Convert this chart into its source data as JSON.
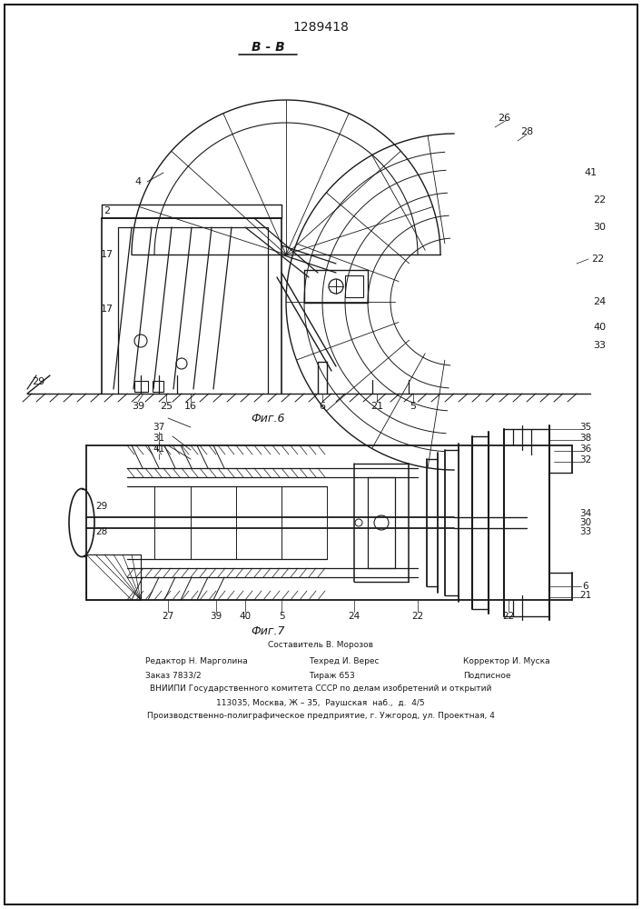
{
  "title": "1289418",
  "bg_color": "#ffffff",
  "fig_width": 7.07,
  "fig_height": 10.0,
  "section_label": "B - B",
  "fig6_label": "Фиг.6",
  "fig7_label": "Фиг.7",
  "footer_lines": [
    "Составитель В. Морозов",
    "Редактор Н. Марголина",
    "Техред И. Верес",
    "Корректор И. Муска",
    "Заказ 7833/2",
    "Тираж 653",
    "Подписное",
    "ВНИИПИ Государственного комитета СССР по делам изобретений и открытий",
    "113035, Москва, Ж – 35,  Раушская  наб.,  д.  4/5",
    "Производственно-полиграфическое предприятие, г. Ужгород, ул. Проектная, 4"
  ],
  "line_color": "#1a1a1a",
  "text_color": "#1a1a1a"
}
